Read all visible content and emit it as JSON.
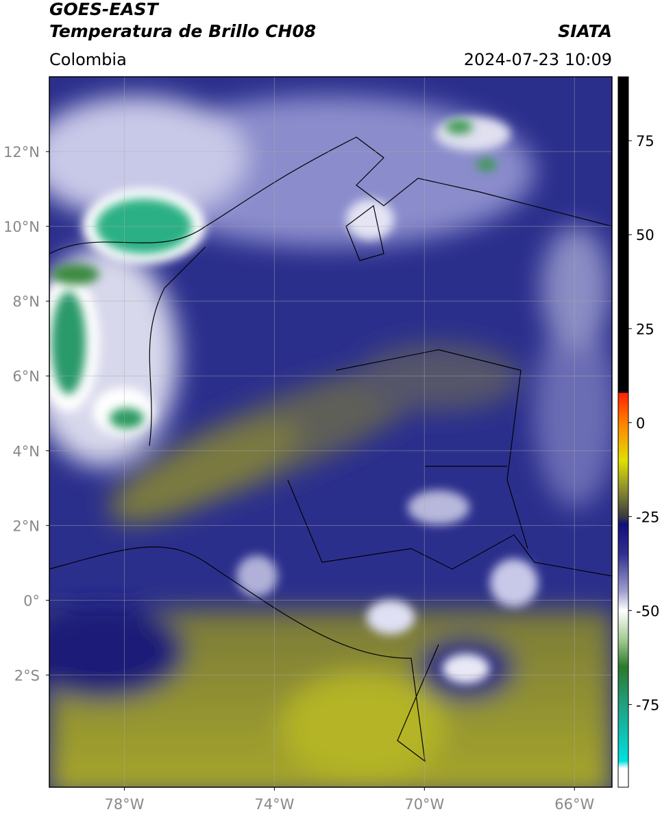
{
  "header": {
    "satellite": "GOES-EAST",
    "product": "Temperatura de Brillo CH08",
    "source": "SIATA",
    "region": "Colombia",
    "datetime": "2024-07-23 10:09"
  },
  "map": {
    "lonlim": [
      -80,
      -65
    ],
    "latlim": [
      -5,
      14
    ],
    "lon_ticks": [
      {
        "value": -78,
        "label": "78°W"
      },
      {
        "value": -74,
        "label": "74°W"
      },
      {
        "value": -70,
        "label": "70°W"
      },
      {
        "value": -66,
        "label": "66°W"
      }
    ],
    "lat_ticks": [
      {
        "value": 12,
        "label": "12°N"
      },
      {
        "value": 10,
        "label": "10°N"
      },
      {
        "value": 8,
        "label": "8°N"
      },
      {
        "value": 6,
        "label": "6°N"
      },
      {
        "value": 4,
        "label": "4°N"
      },
      {
        "value": 2,
        "label": "2°N"
      },
      {
        "value": 0,
        "label": "0°"
      },
      {
        "value": -2,
        "label": "2°S"
      }
    ],
    "grid": true
  },
  "colorbar": {
    "lim": [
      -97,
      92
    ],
    "ticks": [
      75,
      50,
      25,
      0,
      -25,
      -50,
      -75
    ],
    "stops": [
      {
        "value": 92,
        "color": "#000000"
      },
      {
        "value": 8,
        "color": "#000000"
      },
      {
        "value": 7.9,
        "color": "#ff2000"
      },
      {
        "value": 0,
        "color": "#ff8000"
      },
      {
        "value": -10,
        "color": "#e0e000"
      },
      {
        "value": -18,
        "color": "#8a8a30"
      },
      {
        "value": -25,
        "color": "#3a3a40"
      },
      {
        "value": -27,
        "color": "#10107a"
      },
      {
        "value": -35,
        "color": "#303090"
      },
      {
        "value": -45,
        "color": "#a0a0d0"
      },
      {
        "value": -50,
        "color": "#ffffff"
      },
      {
        "value": -58,
        "color": "#a0c890"
      },
      {
        "value": -65,
        "color": "#2a7a2a"
      },
      {
        "value": -75,
        "color": "#20a080"
      },
      {
        "value": -90,
        "color": "#00e0e0"
      },
      {
        "value": -92,
        "color": "#ffffff"
      },
      {
        "value": -97,
        "color": "#ffffff"
      }
    ]
  }
}
